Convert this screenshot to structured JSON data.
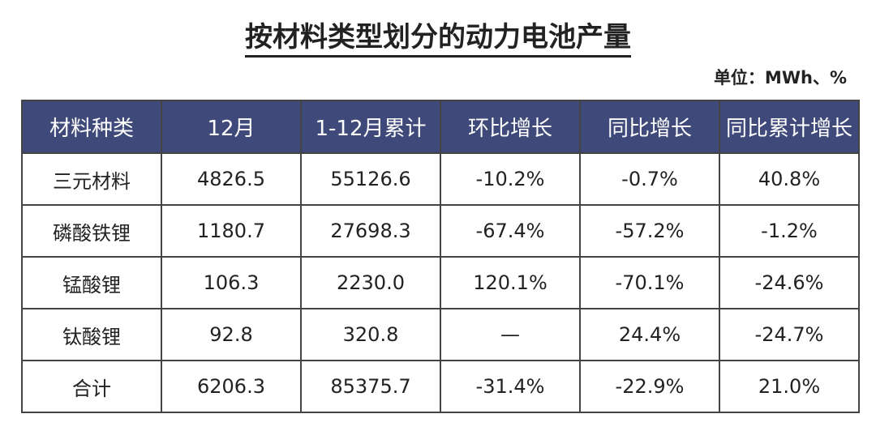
{
  "title": "按材料类型划分的动力电池产量",
  "unit": "单位：MWh、%",
  "chart_data": {
    "type": "table",
    "title": "按材料类型划分的动力电池产量",
    "columns": [
      "材料种类",
      "12月",
      "1-12月累计",
      "环比增长",
      "同比增长",
      "同比累计增长"
    ],
    "rows": [
      [
        "三元材料",
        "4826.5",
        "55126.6",
        "-10.2%",
        "-0.7%",
        "40.8%"
      ],
      [
        "磷酸铁锂",
        "1180.7",
        "27698.3",
        "-67.4%",
        "-57.2%",
        "-1.2%"
      ],
      [
        "锰酸锂",
        "106.3",
        "2230.0",
        "120.1%",
        "-70.1%",
        "-24.6%"
      ],
      [
        "钛酸锂",
        "92.8",
        "320.8",
        "—",
        "24.4%",
        "-24.7%"
      ],
      [
        "合计",
        "6206.3",
        "85375.7",
        "-31.4%",
        "-22.9%",
        "21.0%"
      ]
    ],
    "header_color": "#3f4a7a"
  }
}
